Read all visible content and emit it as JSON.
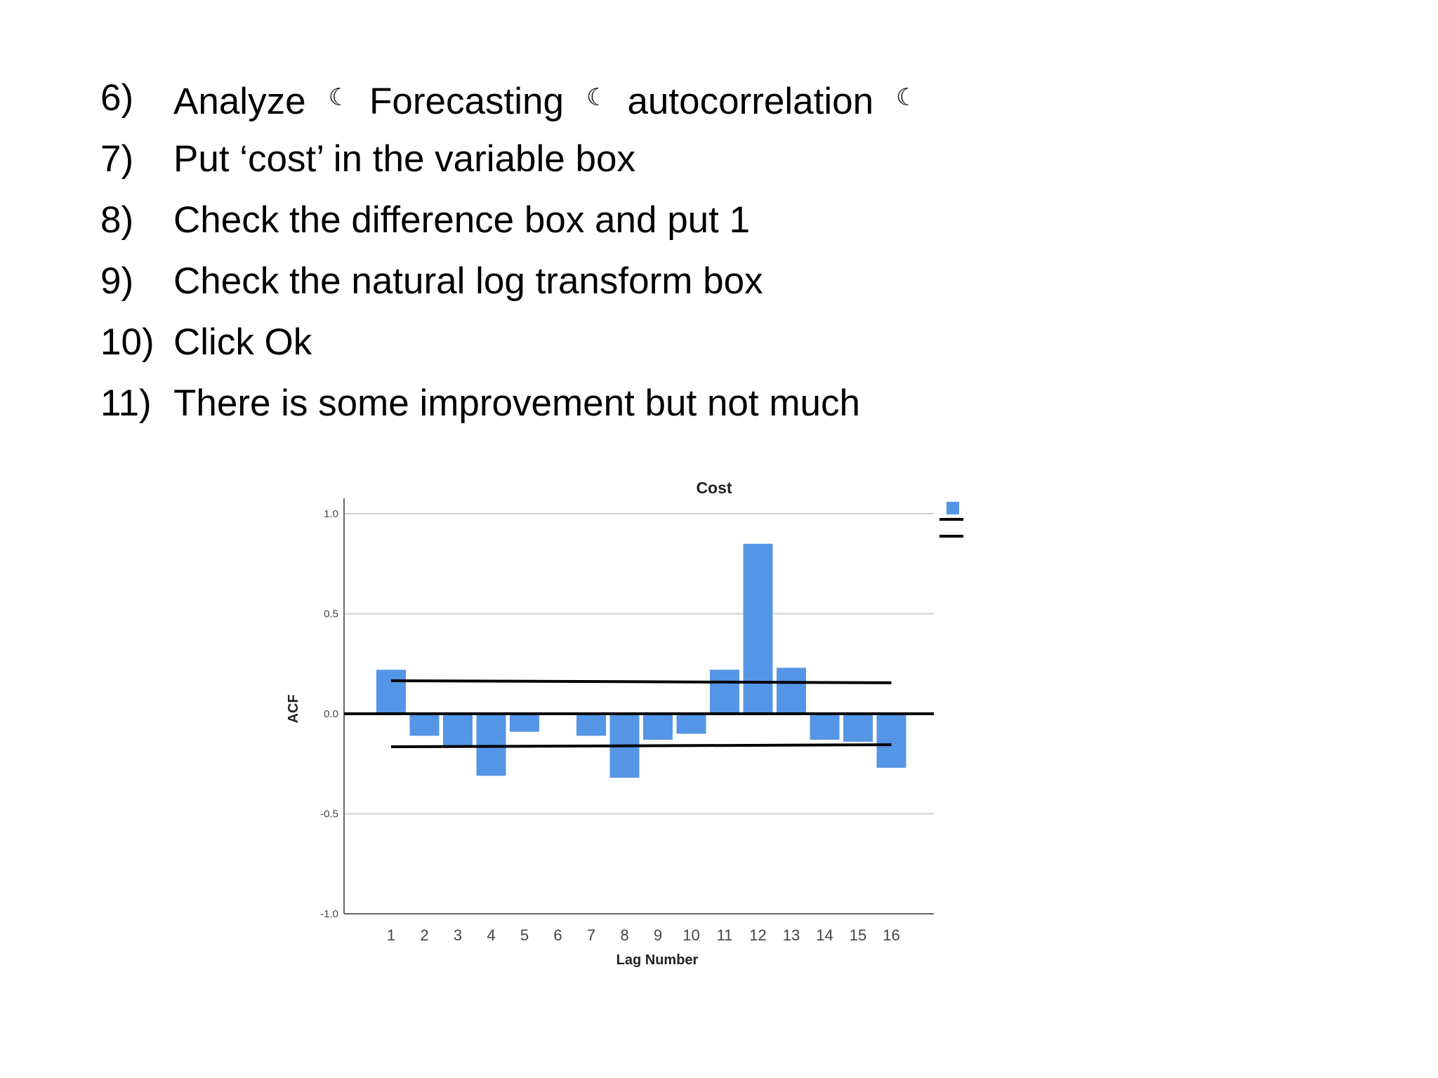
{
  "steps": [
    {
      "num": "6)",
      "parts": [
        "Analyze",
        "Forecasting",
        "autocorrelation"
      ],
      "separator": "☾"
    },
    {
      "num": "7)",
      "text": "Put ‘cost’ in the variable box"
    },
    {
      "num": "8)",
      "text": "Check the difference box and put 1"
    },
    {
      "num": "9)",
      "text": "Check the natural log transform box"
    },
    {
      "num": "10)",
      "text": "Click Ok"
    },
    {
      "num": "11)",
      "text": "There is some improvement but not much"
    }
  ],
  "chart_data": {
    "type": "bar",
    "title": "Cost",
    "xlabel": "Lag Number",
    "ylabel": "ACF",
    "ylim": [
      -1.0,
      1.0
    ],
    "yticks": [
      "1.0",
      "0.5",
      "0.0",
      "-0.5",
      "-1.0"
    ],
    "categories": [
      "1",
      "2",
      "3",
      "4",
      "5",
      "6",
      "7",
      "8",
      "9",
      "10",
      "11",
      "12",
      "13",
      "14",
      "15",
      "16"
    ],
    "values": [
      0.22,
      -0.11,
      -0.16,
      -0.31,
      -0.09,
      0.0,
      -0.11,
      -0.32,
      -0.13,
      -0.1,
      0.22,
      0.85,
      0.23,
      -0.13,
      -0.14,
      -0.27
    ],
    "confidence_limits": {
      "upper": [
        0.165,
        0.155
      ],
      "lower": [
        -0.165,
        -0.155
      ]
    },
    "bar_color": "#5595e5",
    "grid": true,
    "legend": "top-right"
  }
}
